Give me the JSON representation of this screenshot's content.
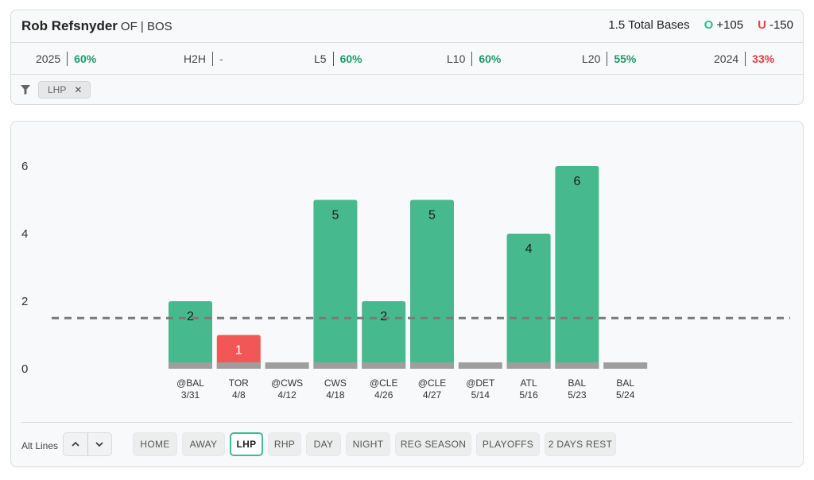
{
  "header": {
    "player_name": "Rob Refsnyder",
    "player_meta": "OF | BOS",
    "prop_label": "1.5 Total Bases",
    "over_label": "O",
    "over_odds": "+105",
    "under_label": "U",
    "under_odds": "-150",
    "over_color": "#2ebd8b",
    "under_color": "#e8454a"
  },
  "stats": [
    {
      "label": "2025",
      "value": "60%",
      "tone": "green"
    },
    {
      "label": "H2H",
      "value": "-",
      "tone": "neutral"
    },
    {
      "label": "L5",
      "value": "60%",
      "tone": "green"
    },
    {
      "label": "L10",
      "value": "60%",
      "tone": "green"
    },
    {
      "label": "L20",
      "value": "55%",
      "tone": "green"
    },
    {
      "label": "2024",
      "value": "33%",
      "tone": "red"
    }
  ],
  "filters": {
    "chips": [
      {
        "label": "LHP",
        "remove_icon": "close-icon"
      }
    ],
    "icon": "filter-icon"
  },
  "chart_data": {
    "type": "bar",
    "title": "",
    "xlabel": "",
    "ylabel": "",
    "ylim": [
      0,
      6
    ],
    "yticks": [
      0,
      2,
      4,
      6
    ],
    "line_value": 1.5,
    "line_style": "dashed",
    "grid": false,
    "colors": {
      "hit": "#47b98f",
      "miss": "#f25757",
      "zero": "#9e9e9e"
    },
    "categories": [
      {
        "opponent": "@BAL",
        "date": "3/31"
      },
      {
        "opponent": "TOR",
        "date": "4/8"
      },
      {
        "opponent": "@CWS",
        "date": "4/12"
      },
      {
        "opponent": "CWS",
        "date": "4/18"
      },
      {
        "opponent": "@CLE",
        "date": "4/26"
      },
      {
        "opponent": "@CLE",
        "date": "4/27"
      },
      {
        "opponent": "@DET",
        "date": "5/14"
      },
      {
        "opponent": "ATL",
        "date": "5/16"
      },
      {
        "opponent": "BAL",
        "date": "5/23"
      },
      {
        "opponent": "BAL",
        "date": "5/24"
      }
    ],
    "values": [
      2,
      1,
      0,
      5,
      2,
      5,
      0,
      4,
      6,
      0
    ]
  },
  "footer": {
    "alt_lines_label": "Alt Lines",
    "stepper_up_icon": "chevron-up-icon",
    "stepper_down_icon": "chevron-down-icon",
    "buttons": [
      {
        "label": "HOME",
        "active": false
      },
      {
        "label": "AWAY",
        "active": false
      },
      {
        "label": "LHP",
        "active": true
      },
      {
        "label": "RHP",
        "active": false
      },
      {
        "label": "DAY",
        "active": false
      },
      {
        "label": "NIGHT",
        "active": false
      },
      {
        "label": "REG SEASON",
        "active": false
      },
      {
        "label": "PLAYOFFS",
        "active": false
      },
      {
        "label": "2 DAYS REST",
        "active": false
      }
    ]
  }
}
